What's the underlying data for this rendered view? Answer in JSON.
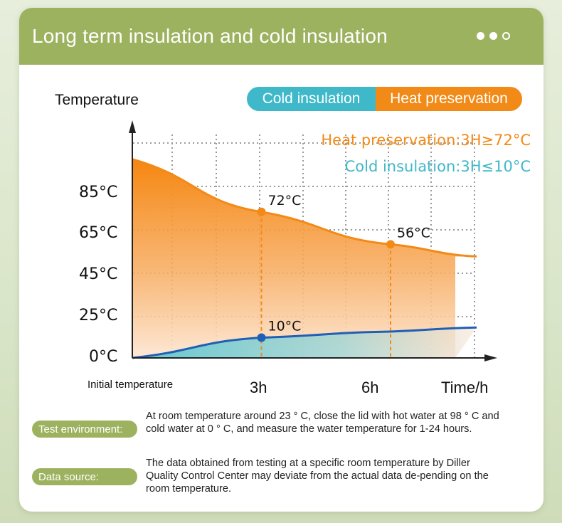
{
  "header": {
    "title": "Long term insulation and cold insulation",
    "pager": {
      "total": 3,
      "active": [
        1,
        2
      ]
    }
  },
  "toggle": {
    "cold_label": "Cold insulation",
    "heat_label": "Heat preservation"
  },
  "chart_data": {
    "type": "area",
    "ylabel": "Temperature",
    "xlabel": "Time/h",
    "x_start_label": "Initial temperature",
    "x_tick_labels": [
      "3h",
      "6h"
    ],
    "y_tick_labels": [
      "0°C",
      "25°C",
      "45°C",
      "65°C",
      "85°C"
    ],
    "legend_notes": {
      "heat": "Heat preservation:3H≥72°C",
      "cold": "Cold insulation:3H≤10°C"
    },
    "series": [
      {
        "name": "Heat preservation",
        "color": "#f28a17",
        "points": [
          [
            0,
            98
          ],
          [
            3,
            72
          ],
          [
            6,
            56
          ],
          [
            8,
            50
          ]
        ],
        "labeled_points": [
          {
            "x": 3,
            "y": 72,
            "label": "72°C"
          },
          {
            "x": 6,
            "y": 56,
            "label": "56°C"
          }
        ]
      },
      {
        "name": "Cold insulation",
        "color": "#1f5fb5",
        "points": [
          [
            0,
            0
          ],
          [
            3,
            10
          ],
          [
            6,
            13
          ],
          [
            8,
            15
          ]
        ],
        "labeled_points": [
          {
            "x": 3,
            "y": 10,
            "label": "10°C"
          }
        ]
      }
    ],
    "grid": true
  },
  "info": {
    "test_env_label": "Test environment:",
    "test_env_text": "At room temperature around 23 ° C, close the lid with hot water at 98 ° C and cold water at 0 ° C, and measure the water temperature for 1-24 hours.",
    "data_source_label": "Data source:",
    "data_source_text": "The data obtained from testing at a specific room temperature by Diller Quality Control Center may deviate from the actual data de-pending on the room temperature."
  }
}
